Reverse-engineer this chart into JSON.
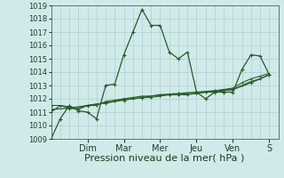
{
  "bg_color": "#d0eaea",
  "grid_color": "#b0cccc",
  "line_color": "#2a5a2a",
  "xlabel": "Pression niveau de la mer( hPa )",
  "ylim": [
    1009,
    1019
  ],
  "yticks": [
    1009,
    1010,
    1011,
    1012,
    1013,
    1014,
    1015,
    1016,
    1017,
    1018,
    1019
  ],
  "day_labels": [
    "Dim",
    "Mar",
    "Mer",
    "Jeu",
    "Ven",
    "S"
  ],
  "day_positions": [
    2,
    4,
    6,
    8,
    10,
    12
  ],
  "series1_x": [
    0,
    0.5,
    1.0,
    1.5,
    2.0,
    2.5,
    3.0,
    3.5,
    4.0,
    4.5,
    5.0,
    5.5,
    6.0,
    6.5,
    7.0,
    7.5,
    8.0,
    8.5,
    9.0,
    9.5,
    10.0,
    10.5,
    11.0,
    11.5,
    12.0
  ],
  "series1_y": [
    1009.0,
    1010.5,
    1011.5,
    1011.1,
    1011.0,
    1010.5,
    1013.0,
    1013.1,
    1015.3,
    1017.0,
    1018.7,
    1017.5,
    1017.5,
    1015.5,
    1015.0,
    1015.5,
    1012.5,
    1012.0,
    1012.5,
    1012.5,
    1012.5,
    1014.2,
    1015.3,
    1015.2,
    1013.8
  ],
  "series2_x": [
    0,
    0.5,
    1.0,
    1.5,
    2.0,
    2.5,
    3.0,
    3.5,
    4.0,
    4.5,
    5.0,
    5.5,
    6.0,
    6.5,
    7.0,
    7.5,
    8.0,
    8.5,
    9.0,
    9.5,
    10.0,
    10.5,
    11.0,
    11.5,
    12.0
  ],
  "series2_y": [
    1011.5,
    1011.5,
    1011.4,
    1011.3,
    1011.5,
    1011.6,
    1011.7,
    1011.8,
    1012.0,
    1012.0,
    1012.1,
    1012.1,
    1012.2,
    1012.3,
    1012.3,
    1012.4,
    1012.4,
    1012.5,
    1012.6,
    1012.7,
    1012.8,
    1013.2,
    1013.5,
    1013.7,
    1013.9
  ],
  "series3_x": [
    0,
    0.5,
    1.0,
    1.5,
    2.0,
    2.5,
    3.0,
    3.5,
    4.0,
    4.5,
    5.0,
    5.5,
    6.0,
    6.5,
    7.0,
    7.5,
    8.0,
    8.5,
    9.0,
    9.5,
    10.0,
    10.5,
    11.0,
    11.5,
    12.0
  ],
  "series3_y": [
    1011.0,
    1011.5,
    1011.3,
    1011.2,
    1011.5,
    1011.5,
    1011.8,
    1011.9,
    1012.0,
    1012.1,
    1012.2,
    1012.2,
    1012.3,
    1012.3,
    1012.3,
    1012.3,
    1012.4,
    1012.5,
    1012.5,
    1012.6,
    1012.7,
    1013.0,
    1013.3,
    1013.5,
    1013.8
  ],
  "series4_x": [
    0,
    1.0,
    2.0,
    3.0,
    4.0,
    5.0,
    6.0,
    7.0,
    8.0,
    9.0,
    10.0,
    11.0,
    12.0
  ],
  "series4_y": [
    1011.2,
    1011.3,
    1011.5,
    1011.7,
    1011.9,
    1012.1,
    1012.3,
    1012.4,
    1012.5,
    1012.6,
    1012.7,
    1013.2,
    1013.8
  ],
  "xlim": [
    0,
    12.5
  ],
  "xlabel_fontsize": 8,
  "ytick_fontsize": 6,
  "xtick_fontsize": 7
}
